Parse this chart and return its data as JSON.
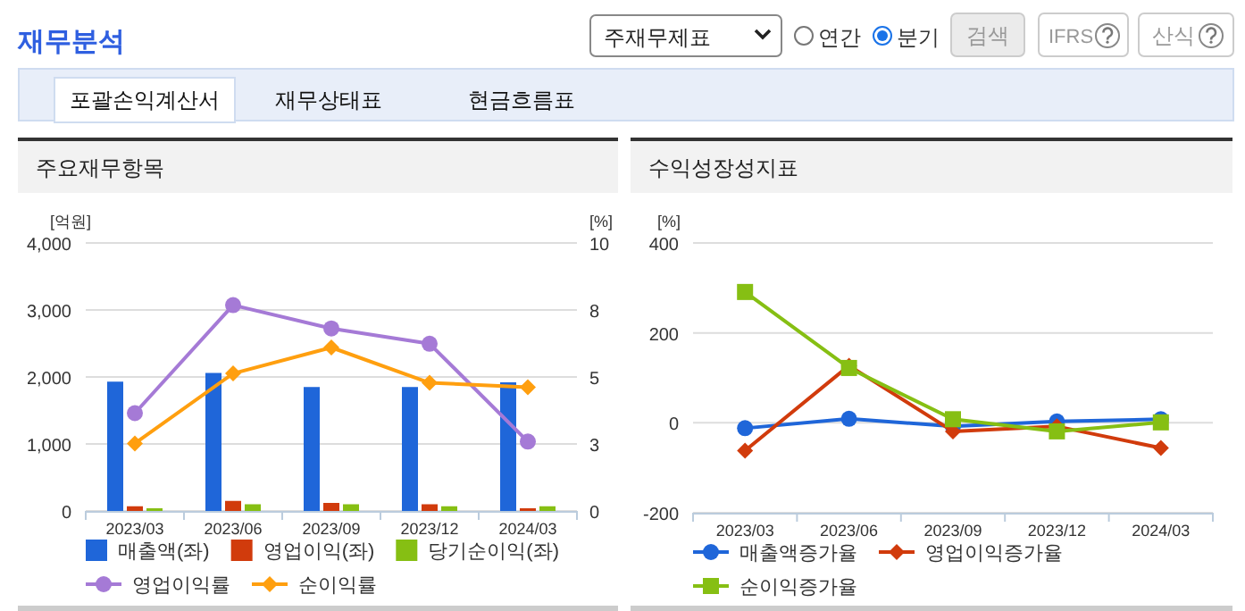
{
  "chart_data": [
    {
      "type": "other",
      "title": "재무분석",
      "annotations": [
        "주재무제표",
        "연간",
        "분기",
        "검색",
        "IFRS",
        "산식",
        "포괄손익계산서",
        "재무상태표",
        "현금흐름표"
      ]
    },
    {
      "type": "bar",
      "title": "주요재무항목",
      "ylabel": "[억원]",
      "y2label": "[%]",
      "categories": [
        "2023/03",
        "2023/06",
        "2023/09",
        "2023/12",
        "2024/03"
      ],
      "ylim": [
        0,
        4000
      ],
      "yticks": [
        0,
        {
          "value": 1000,
          "label": "1,000"
        },
        {
          "value": 2000,
          "label": "2,000"
        },
        {
          "value": 3000,
          "label": "3,000"
        },
        {
          "value": 4000,
          "label": "4,000"
        }
      ],
      "y2lim": [
        0,
        10
      ],
      "y2ticks": [
        0,
        {
          "value": 2.5,
          "label": "3"
        },
        5,
        {
          "value": 7.5,
          "label": "8"
        },
        10
      ],
      "grid": "y",
      "legend": "bottom",
      "series": [
        {
          "name": "매출액(좌)",
          "color": "#1f66d9",
          "values": [
            1930,
            2060,
            1850,
            1850,
            1920
          ]
        },
        {
          "name": "영업이익(좌)",
          "color": "#d13b0c",
          "values": [
            70,
            150,
            120,
            100,
            40
          ]
        },
        {
          "name": "당기순이익(좌)",
          "color": "#86bf13",
          "values": [
            40,
            100,
            100,
            70,
            70
          ]
        },
        {
          "name": "영업이익률",
          "type": "line",
          "axis": "y2",
          "marker": "circle",
          "color": "#a57ad6",
          "values": [
            3.65,
            7.68,
            6.81,
            6.24,
            2.59
          ]
        },
        {
          "name": "순이익률",
          "type": "line",
          "axis": "y2",
          "marker": "diamond",
          "color": "#ff9f0f",
          "values": [
            2.52,
            5.13,
            6.1,
            4.78,
            4.62
          ]
        }
      ]
    },
    {
      "type": "line",
      "title": "수익성장성지표",
      "ylabel": "[%]",
      "categories": [
        "2023/03",
        "2023/06",
        "2023/09",
        "2023/12",
        "2024/03"
      ],
      "ylim": [
        -200,
        400
      ],
      "yticks": [
        -200,
        0,
        200,
        400
      ],
      "grid": "y",
      "legend": "bottom",
      "series": [
        {
          "name": "매출액증가율",
          "marker": "circle",
          "color": "#1f66d9",
          "values": [
            -12,
            9,
            -8,
            3,
            8
          ]
        },
        {
          "name": "영업이익증가율",
          "marker": "diamond",
          "color": "#d13b0c",
          "values": [
            -62,
            127,
            -19,
            -8,
            -56
          ]
        },
        {
          "name": "순이익증가율",
          "marker": "square",
          "color": "#86bf13",
          "values": [
            291,
            122,
            8,
            -19,
            1
          ]
        }
      ]
    }
  ]
}
